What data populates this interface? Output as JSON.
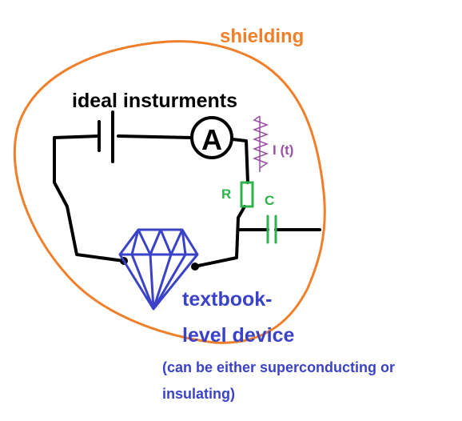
{
  "labels": {
    "shielding": "shielding",
    "instruments": "ideal insturments",
    "ammeter": "A",
    "current": "I (t)",
    "resistor": "R",
    "capacitor": "C",
    "device_line1": "textbook-",
    "device_line2": "level device",
    "note_line1": "(can be either superconducting or",
    "note_line2": "insulating)"
  },
  "colors": {
    "shielding": "#f07f2a",
    "wire": "#000000",
    "component": "#2db34a",
    "current": "#9a4fa3",
    "device": "#3a42c8"
  },
  "icons": {
    "battery": "battery-symbol",
    "ammeter": "ammeter-symbol",
    "resistor": "resistor-symbol",
    "capacitor": "capacitor-symbol",
    "current": "zigzag-current-symbol",
    "device": "diamond-icon"
  }
}
